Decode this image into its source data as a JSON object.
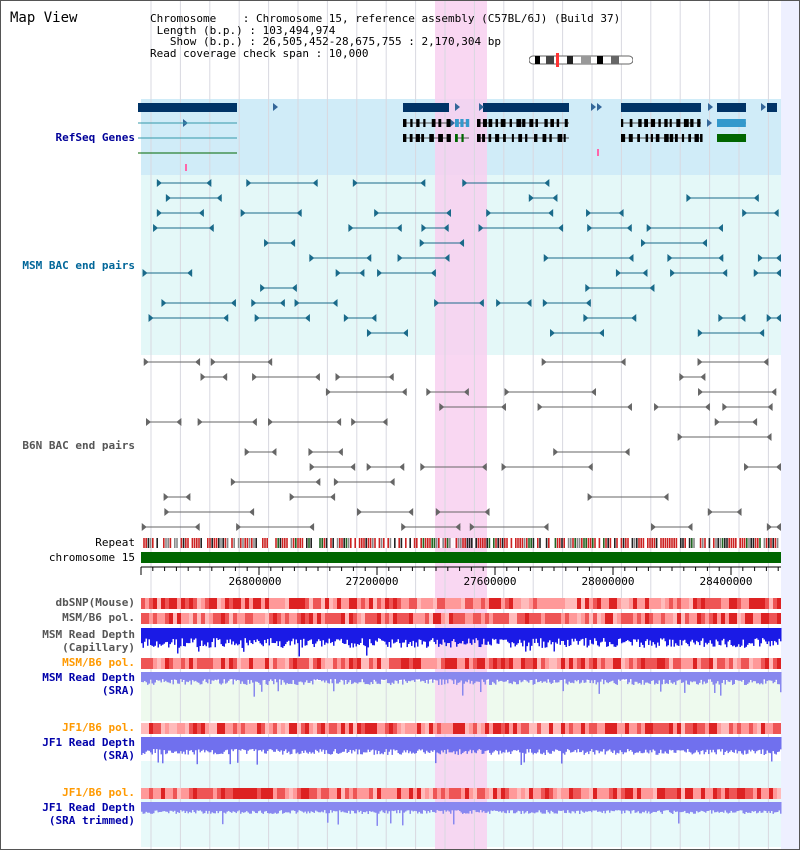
{
  "view_title": "Map View",
  "info": {
    "chromosome_line": "Chromosome    : Chromosome 15, reference assembly (C57BL/6J) (Build 37)",
    "length_line": " Length (b.p.) : 103,494,974",
    "show_line": "   Show (b.p.) : 26,505,452-28,675,755 : 2,170,304 bp",
    "coverage_line": "Read coverage check span : 10,000"
  },
  "tracks": {
    "refseq": "RefSeq Genes",
    "msm_bac": "MSM BAC end pairs",
    "b6n_bac": "B6N BAC end pairs",
    "repeat": "Repeat",
    "chromosome": "chromosome 15",
    "dbsnp": "dbSNP(Mouse)",
    "msm_b6_pol_1": "MSM/B6 pol.",
    "msm_depth_cap_1": "MSM Read Depth",
    "msm_depth_cap_2": "(Capillary)",
    "msm_b6_pol_2": "MSM/B6 pol.",
    "msm_depth_sra_1": "MSM Read Depth",
    "msm_depth_sra_2": "(SRA)",
    "jf1_b6_pol_1": "JF1/B6 pol.",
    "jf1_depth_sra_1": "JF1 Read Depth",
    "jf1_depth_sra_2": "(SRA)",
    "jf1_b6_pol_2": "JF1/B6 pol.",
    "jf1_depth_trim_1": "JF1 Read Depth",
    "jf1_depth_trim_2": "(SRA trimmed)"
  },
  "axis": {
    "ticks": [
      "26800000",
      "27200000",
      "27600000",
      "28000000",
      "28400000"
    ]
  },
  "colors": {
    "refseq_label": "#000099",
    "msm_label": "#006699",
    "gray_label": "#555555",
    "orange_label": "#ff9900",
    "blue_label": "#0000aa",
    "highlight": "#f8d0f0",
    "refseq_bg": "#d0ecf8",
    "gene_dark": "#003366",
    "gene_mid": "#3399cc",
    "gene_green": "#006600",
    "chrom_green": "#006600"
  }
}
